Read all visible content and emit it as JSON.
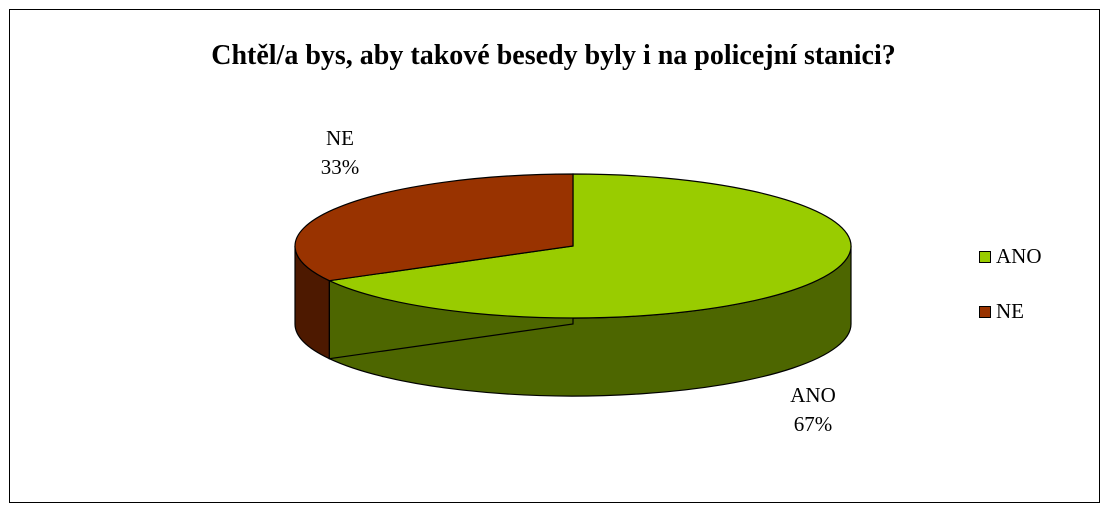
{
  "chart_data": {
    "type": "pie",
    "title": "Chtěl/a bys, aby takové besedy byly i na policejní stanici?",
    "slices": [
      {
        "name": "ANO",
        "value": 67,
        "percent_label": "67%",
        "color": "#99CC00",
        "side_color": "#4D6600"
      },
      {
        "name": "NE",
        "value": 33,
        "percent_label": "33%",
        "color": "#993300",
        "side_color": "#4D1900"
      }
    ],
    "legend": {
      "position": "right",
      "entries": [
        "ANO",
        "NE"
      ]
    },
    "style": "3d"
  }
}
